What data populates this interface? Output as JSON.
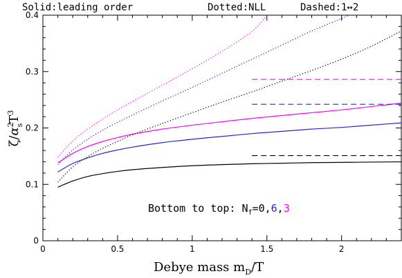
{
  "chart_data": {
    "type": "line",
    "header": {
      "solid": "Solid:leading order",
      "dotted": "Dotted:NLL",
      "dashed": "Dashed:1↔2"
    },
    "xlabel": {
      "main": "Debye mass m",
      "sub": "D",
      "tail": "/T"
    },
    "ylabel": {
      "zeta": "ζ",
      "slash": "/",
      "alpha": "α",
      "alpha_sub": "s",
      "alpha_sup": "2",
      "T": "T",
      "T_sup": "3"
    },
    "xlim": [
      0,
      2.4
    ],
    "ylim": [
      0,
      0.4
    ],
    "xticks": [
      0,
      0.5,
      1,
      1.5,
      2
    ],
    "xtick_labels": [
      "0",
      "0.5",
      "1",
      "1.5",
      "2"
    ],
    "yticks": [
      0,
      0.1,
      0.2,
      0.3,
      0.4
    ],
    "ytick_labels": [
      "0",
      "0.1",
      "0.2",
      "0.3",
      "0.4"
    ],
    "annotation": {
      "prefix": "Bottom to top: N",
      "sub": "f",
      "eq": "=",
      "v0": "0",
      "c1": ",",
      "v1": "6",
      "c2": ",",
      "v2": "3"
    },
    "series": [
      {
        "nf": "0",
        "style": "solid",
        "color": "#000000",
        "x": [
          0.1,
          0.2,
          0.3,
          0.4,
          0.5,
          0.6,
          0.8,
          1.0,
          1.2,
          1.4,
          1.6,
          1.8,
          2.0,
          2.2,
          2.4
        ],
        "y": [
          0.095,
          0.106,
          0.114,
          0.119,
          0.123,
          0.126,
          0.13,
          0.133,
          0.135,
          0.1365,
          0.1375,
          0.1385,
          0.139,
          0.1395,
          0.14
        ]
      },
      {
        "nf": "6",
        "style": "solid",
        "color": "#2424d6",
        "x": [
          0.1,
          0.2,
          0.3,
          0.4,
          0.5,
          0.6,
          0.8,
          1.0,
          1.2,
          1.4,
          1.6,
          1.8,
          2.0,
          2.2,
          2.4
        ],
        "y": [
          0.122,
          0.137,
          0.147,
          0.155,
          0.161,
          0.166,
          0.174,
          0.18,
          0.185,
          0.19,
          0.194,
          0.198,
          0.201,
          0.205,
          0.209
        ]
      },
      {
        "nf": "3",
        "style": "solid",
        "color": "#ff00ff",
        "x": [
          0.1,
          0.2,
          0.3,
          0.4,
          0.5,
          0.6,
          0.8,
          1.0,
          1.2,
          1.4,
          1.6,
          1.8,
          2.0,
          2.2,
          2.4
        ],
        "y": [
          0.138,
          0.155,
          0.167,
          0.176,
          0.183,
          0.189,
          0.198,
          0.205,
          0.211,
          0.217,
          0.222,
          0.227,
          0.232,
          0.238,
          0.244
        ]
      },
      {
        "nf": "0",
        "style": "dotted",
        "color": "#000000",
        "x": [
          0.1,
          0.2,
          0.3,
          0.4,
          0.5,
          0.6,
          0.8,
          1.0,
          1.2,
          1.4,
          1.6,
          1.8,
          2.0,
          2.2,
          2.4
        ],
        "y": [
          0.104,
          0.131,
          0.149,
          0.164,
          0.176,
          0.188,
          0.208,
          0.227,
          0.246,
          0.264,
          0.283,
          0.302,
          0.322,
          0.345,
          0.372
        ]
      },
      {
        "nf": "6",
        "style": "dotted",
        "color": "#2424d6",
        "x": [
          0.1,
          0.2,
          0.3,
          0.4,
          0.5,
          0.6,
          0.8,
          1.0,
          1.2,
          1.4,
          1.6,
          1.8,
          2.0,
          2.05
        ],
        "y": [
          0.135,
          0.161,
          0.18,
          0.196,
          0.21,
          0.223,
          0.248,
          0.272,
          0.297,
          0.322,
          0.347,
          0.372,
          0.394,
          0.4
        ]
      },
      {
        "nf": "3",
        "style": "dotted",
        "color": "#ff00ff",
        "x": [
          0.1,
          0.2,
          0.3,
          0.4,
          0.5,
          0.6,
          0.8,
          1.0,
          1.2,
          1.4,
          1.5
        ],
        "y": [
          0.148,
          0.177,
          0.198,
          0.216,
          0.232,
          0.247,
          0.276,
          0.305,
          0.336,
          0.371,
          0.4
        ]
      },
      {
        "nf": "0",
        "style": "dashed",
        "color": "#000000",
        "x": [
          1.4,
          2.4
        ],
        "y": [
          0.151,
          0.151
        ]
      },
      {
        "nf": "6",
        "style": "dashed",
        "color": "#2424d6",
        "x": [
          1.4,
          2.4
        ],
        "y": [
          0.242,
          0.242
        ]
      },
      {
        "nf": "3",
        "style": "dashed",
        "color": "#ff00ff",
        "x": [
          1.4,
          2.4
        ],
        "y": [
          0.286,
          0.286
        ]
      }
    ]
  }
}
